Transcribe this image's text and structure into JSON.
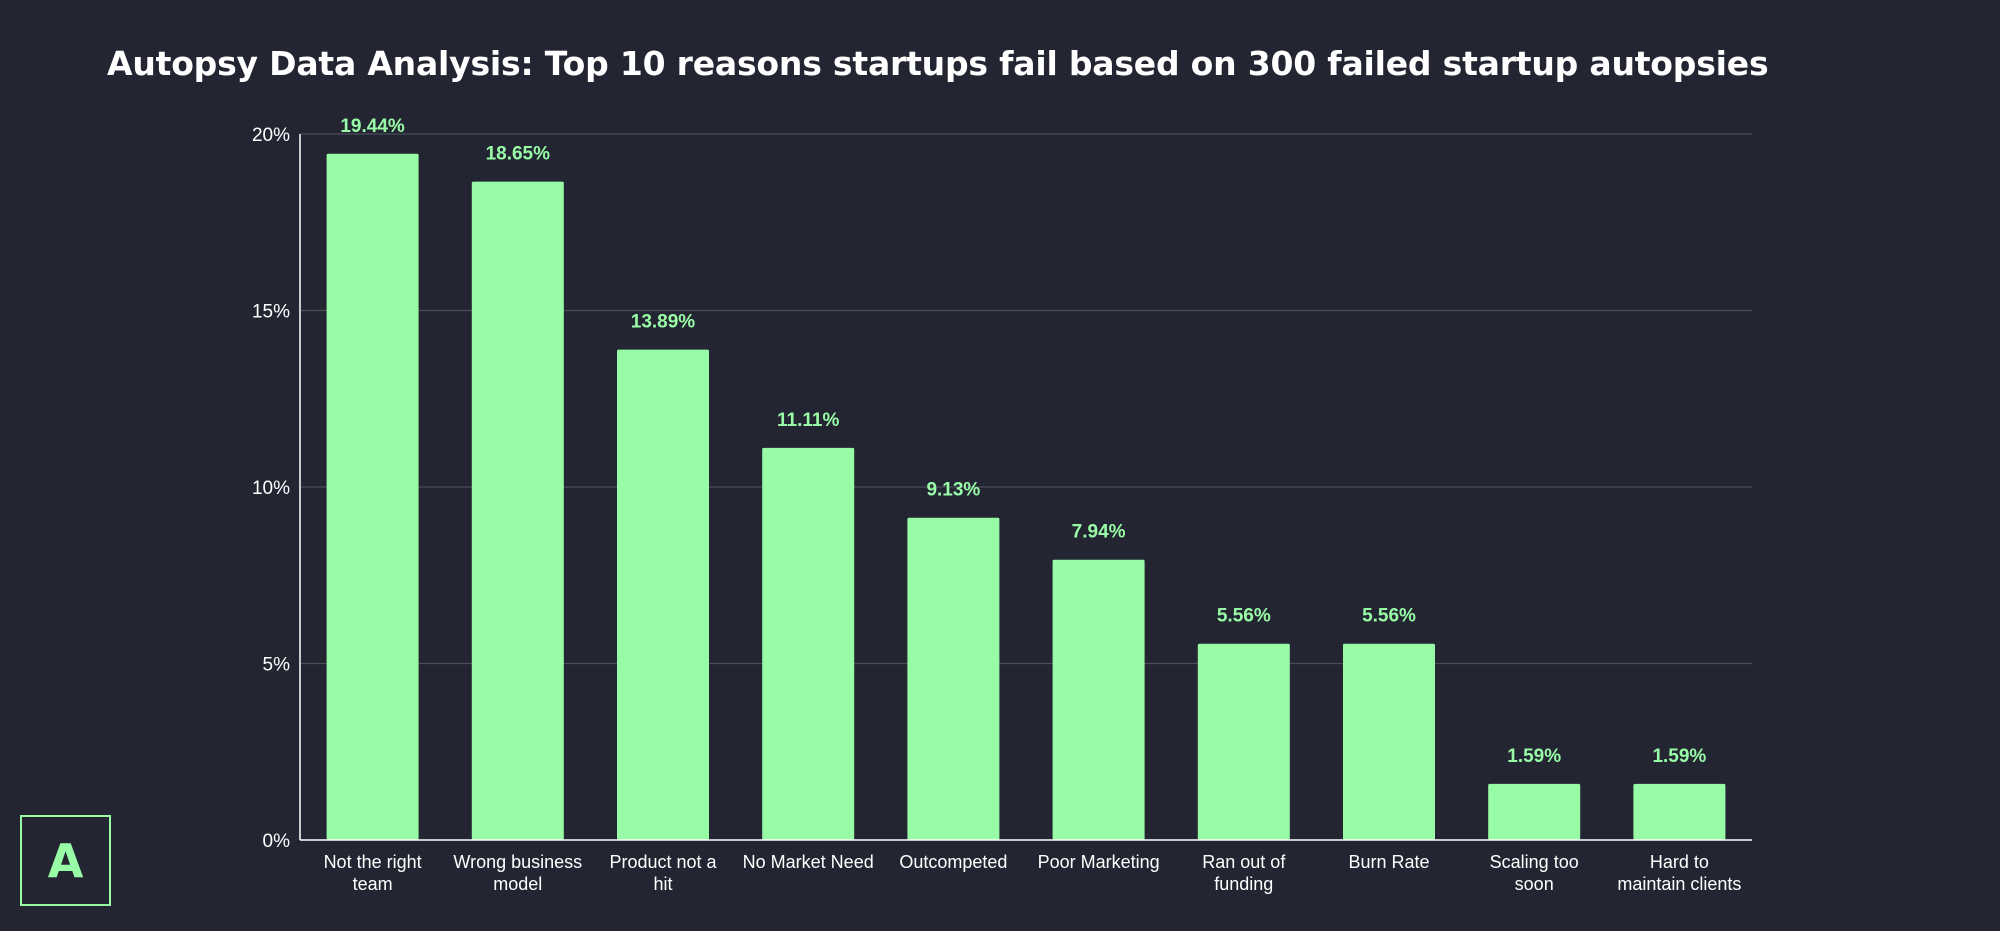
{
  "chart_data": {
    "type": "bar",
    "title": "Autopsy Data Analysis: Top 10 reasons startups fail based on 300 failed startup autopsies",
    "xlabel": "",
    "ylabel": "",
    "categories": [
      [
        "Not the right",
        "team"
      ],
      [
        "Wrong business",
        "model"
      ],
      [
        "Product not a",
        "hit"
      ],
      [
        "No Market Need"
      ],
      [
        "Outcompeted"
      ],
      [
        "Poor Marketing"
      ],
      [
        "Ran out of",
        "funding"
      ],
      [
        "Burn Rate"
      ],
      [
        "Scaling too",
        "soon"
      ],
      [
        "Hard to",
        "maintain clients"
      ]
    ],
    "values": [
      19.44,
      18.65,
      13.89,
      11.11,
      9.13,
      7.94,
      5.56,
      5.56,
      1.59,
      1.59
    ],
    "data_labels": [
      "19.44%",
      "18.65%",
      "13.89%",
      "11.11%",
      "9.13%",
      "7.94%",
      "5.56%",
      "5.56%",
      "1.59%",
      "1.59%"
    ],
    "ylim": [
      0,
      20
    ],
    "yticks": [
      0,
      5,
      10,
      15,
      20
    ],
    "ytick_labels": [
      "0%",
      "5%",
      "10%",
      "15%",
      "20%"
    ],
    "grid": true,
    "legend": "none",
    "colors": {
      "bar": "#98fba5",
      "background": "#232632",
      "grid": "#4a4d58",
      "axis": "#ffffff",
      "text": "#ffffff"
    }
  },
  "logo": {
    "letter": "A"
  }
}
